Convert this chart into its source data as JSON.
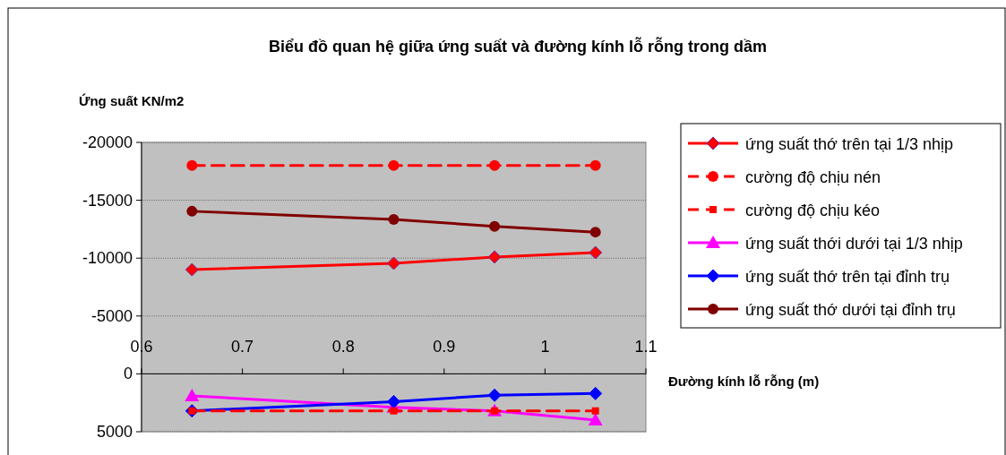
{
  "chart_data": {
    "type": "line",
    "title": "Biểu đồ quan hệ giữa ứng suất và đường kính lỗ rỗng trong dầm",
    "xlabel": "Đường kính lỗ rỗng (m)",
    "ylabel": "Ứng suất KN/m2",
    "x": [
      0.65,
      0.85,
      0.95,
      1.05
    ],
    "xlim": [
      0.6,
      1.1
    ],
    "xticks": [
      0.6,
      0.7,
      0.8,
      0.9,
      1,
      1.1
    ],
    "ylim": [
      5000,
      -20000
    ],
    "yticks": [
      -20000,
      -15000,
      -10000,
      -5000,
      0,
      5000
    ],
    "grid": "y",
    "legend": "right",
    "series": [
      {
        "name": "ứng suất thớ trên tại 1/3 nhịp",
        "color": "#ff0000",
        "marker": "diamond",
        "line_style": "solid",
        "values": [
          -9000,
          -9550,
          -10100,
          -10480
        ]
      },
      {
        "name": "cường độ chịu nén",
        "color": "#ff0000",
        "marker": "circle",
        "line_style": "dashed",
        "values": [
          -18000,
          -18000,
          -18000,
          -18000
        ]
      },
      {
        "name": "cường độ chịu kéo",
        "color": "#ff0000",
        "marker": "square",
        "line_style": "dashed",
        "values": [
          3200,
          3200,
          3200,
          3200
        ]
      },
      {
        "name": "ứng suất thới dưới tại 1/3 nhịp",
        "color": "#ff00ff",
        "marker": "triangle",
        "line_style": "solid",
        "values": [
          1900,
          2900,
          3200,
          4000
        ]
      },
      {
        "name": "ứng suất thớ trên tại đỉnh trụ",
        "color": "#0000ff",
        "marker": "diamond",
        "line_style": "solid",
        "values": [
          3200,
          2400,
          1850,
          1700
        ]
      },
      {
        "name": "ứng suất thớ dưới tại đỉnh trụ",
        "color": "#800000",
        "marker": "circle",
        "line_style": "solid",
        "values": [
          -14050,
          -13350,
          -12750,
          -12250
        ]
      }
    ]
  }
}
